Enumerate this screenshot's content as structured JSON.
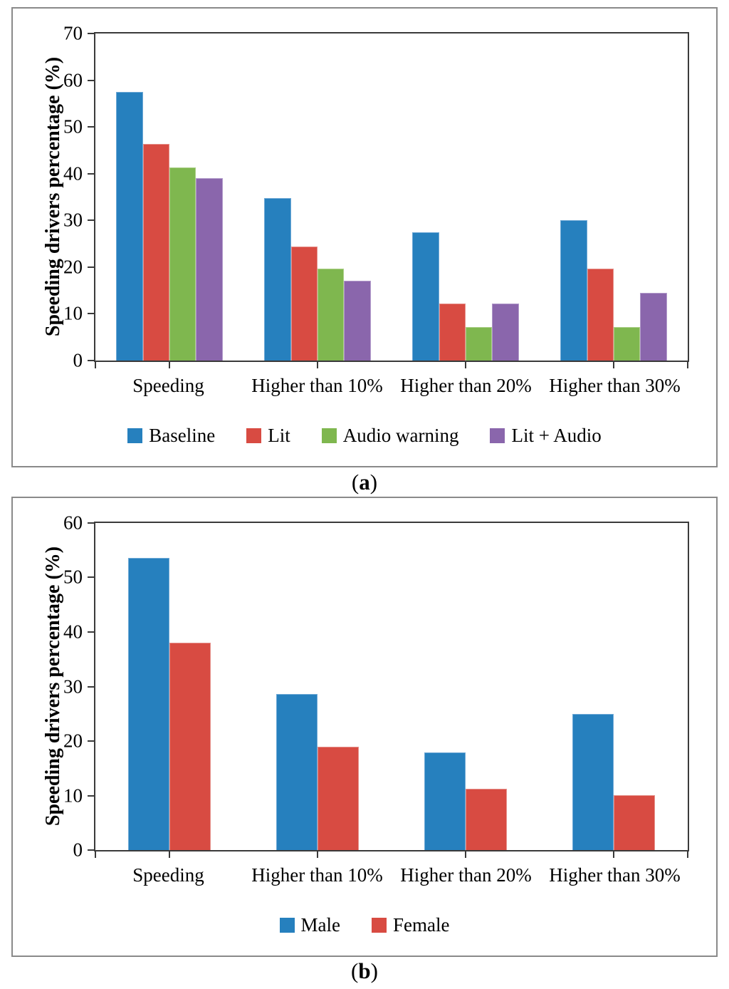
{
  "chart_data": [
    {
      "type": "bar",
      "panel_label": {
        "open": "(",
        "letter": "a",
        "close": ")"
      },
      "ylabel": "Speeding drivers percentage (%)",
      "ylim": [
        0,
        70
      ],
      "yticks": [
        0,
        10,
        20,
        30,
        40,
        50,
        60,
        70
      ],
      "grid": false,
      "legend_position": "bottom",
      "categories": [
        "Speeding",
        "Higher than 10%",
        "Higher than 20%",
        "Higher than 30%"
      ],
      "series": [
        {
          "name": "Baseline",
          "color": "#2680BE",
          "edge": "#6FA9D6",
          "values": [
            57.5,
            34.8,
            27.5,
            30.0
          ]
        },
        {
          "name": "Lit",
          "color": "#D84B42",
          "edge": "#E58F89",
          "values": [
            46.4,
            24.4,
            12.2,
            19.6
          ]
        },
        {
          "name": "Audio warning",
          "color": "#7FB74F",
          "edge": "#ABCF87",
          "values": [
            41.3,
            19.6,
            7.1,
            7.1
          ]
        },
        {
          "name": "Lit + Audio",
          "color": "#8A66AC",
          "edge": "#B29BCB",
          "values": [
            39.0,
            17.1,
            12.2,
            14.5
          ]
        }
      ]
    },
    {
      "type": "bar",
      "panel_label": {
        "open": "(",
        "letter": "b",
        "close": ")"
      },
      "ylabel": "Speeding drivers percentage (%)",
      "ylim": [
        0,
        60
      ],
      "yticks": [
        0,
        10,
        20,
        30,
        40,
        50,
        60
      ],
      "grid": false,
      "legend_position": "bottom",
      "categories": [
        "Speeding",
        "Higher than 10%",
        "Higher than 20%",
        "Higher than 30%"
      ],
      "series": [
        {
          "name": "Male",
          "color": "#2680BE",
          "edge": "#6FA9D6",
          "values": [
            53.6,
            28.6,
            17.9,
            25.0
          ]
        },
        {
          "name": "Female",
          "color": "#D84B42",
          "edge": "#E58F89",
          "values": [
            38.0,
            19.0,
            11.3,
            10.1
          ]
        }
      ]
    }
  ],
  "colors": {
    "panel_border": "#8a8a8a",
    "axis": "#3a3a3a",
    "text": "#000000",
    "background": "#ffffff"
  }
}
